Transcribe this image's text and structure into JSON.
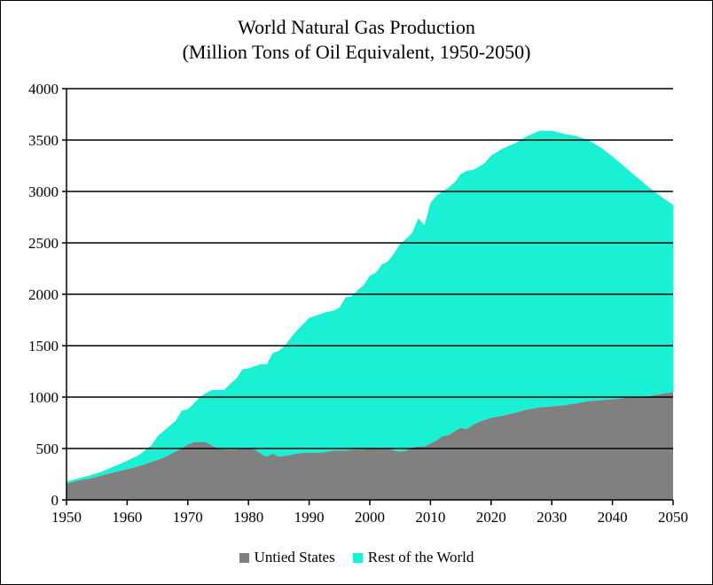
{
  "chart_data": {
    "type": "area",
    "stacked": true,
    "title": "World Natural Gas Production",
    "subtitle": "(Million Tons of Oil Equivalent, 1950-2050)",
    "xlabel": "",
    "ylabel": "",
    "xlim": [
      1950,
      2050
    ],
    "ylim": [
      0,
      4000
    ],
    "x_ticks": [
      1950,
      1960,
      1970,
      1980,
      1990,
      2000,
      2010,
      2020,
      2030,
      2040,
      2050
    ],
    "y_ticks": [
      0,
      500,
      1000,
      1500,
      2000,
      2500,
      3000,
      3500,
      4000
    ],
    "grid": "horizontal",
    "legend_position": "bottom",
    "x": [
      1950,
      1952,
      1954,
      1956,
      1958,
      1960,
      1962,
      1964,
      1965,
      1966,
      1967,
      1968,
      1969,
      1970,
      1971,
      1972,
      1973,
      1974,
      1975,
      1976,
      1977,
      1978,
      1979,
      1980,
      1981,
      1982,
      1983,
      1984,
      1985,
      1986,
      1987,
      1988,
      1989,
      1990,
      1991,
      1992,
      1993,
      1994,
      1995,
      1996,
      1997,
      1998,
      1999,
      2000,
      2001,
      2002,
      2003,
      2004,
      2005,
      2006,
      2007,
      2008,
      2009,
      2010,
      2011,
      2012,
      2013,
      2014,
      2015,
      2016,
      2017,
      2018,
      2019,
      2020,
      2022,
      2024,
      2026,
      2028,
      2030,
      2032,
      2034,
      2036,
      2038,
      2040,
      2042,
      2044,
      2046,
      2048,
      2050
    ],
    "series": [
      {
        "name": "Untied States",
        "color": "#808080",
        "values": [
          160,
          190,
          210,
          240,
          270,
          300,
          330,
          370,
          390,
          410,
          440,
          470,
          500,
          540,
          560,
          560,
          560,
          530,
          500,
          490,
          490,
          490,
          500,
          500,
          490,
          450,
          420,
          450,
          420,
          430,
          440,
          450,
          460,
          460,
          460,
          460,
          470,
          480,
          480,
          480,
          490,
          490,
          490,
          500,
          510,
          490,
          500,
          480,
          470,
          480,
          510,
          520,
          520,
          550,
          580,
          620,
          630,
          670,
          700,
          690,
          730,
          760,
          780,
          800,
          820,
          850,
          880,
          900,
          910,
          920,
          940,
          960,
          970,
          980,
          990,
          1000,
          1010,
          1030,
          1050
        ]
      },
      {
        "name": "Rest of the World",
        "color": "#1AF0D4",
        "values": [
          20,
          20,
          30,
          40,
          60,
          80,
          110,
          160,
          230,
          260,
          280,
          300,
          370,
          340,
          380,
          440,
          480,
          540,
          570,
          580,
          640,
          690,
          770,
          780,
          810,
          870,
          900,
          980,
          1030,
          1070,
          1140,
          1200,
          1250,
          1310,
          1330,
          1350,
          1360,
          1360,
          1390,
          1490,
          1490,
          1550,
          1600,
          1680,
          1700,
          1800,
          1820,
          1920,
          2020,
          2060,
          2090,
          2220,
          2150,
          2340,
          2380,
          2380,
          2410,
          2420,
          2470,
          2510,
          2480,
          2480,
          2500,
          2550,
          2600,
          2620,
          2660,
          2690,
          2680,
          2640,
          2600,
          2540,
          2460,
          2360,
          2250,
          2140,
          2030,
          1920,
          1820
        ]
      }
    ]
  }
}
